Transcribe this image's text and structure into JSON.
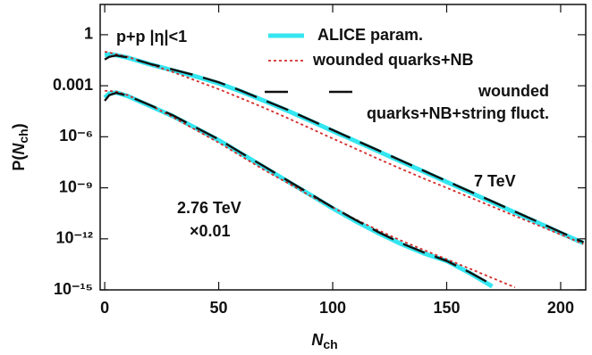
{
  "chart_data": {
    "type": "line",
    "xlabel": [
      "N",
      "ch"
    ],
    "ylabel": [
      "P(",
      "N",
      "ch",
      ")"
    ],
    "annotations": [
      "p+p  |η|<1",
      "7 TeV",
      "2.76 TeV",
      "×0.01"
    ],
    "xlim": [
      -2,
      211
    ],
    "ylim": [
      1e-15,
      60
    ],
    "log_y": true,
    "xticks": [
      0,
      50,
      100,
      150,
      200
    ],
    "yticks": [
      1,
      0.001,
      {
        "value": 1e-06,
        "label": "10⁻⁶"
      },
      {
        "value": 1e-09,
        "label": "10⁻⁹"
      },
      {
        "value": 1e-12,
        "label": "10⁻¹²"
      },
      {
        "value": 1e-15,
        "label": "10⁻¹⁵"
      }
    ],
    "x": [
      0,
      2,
      5,
      10,
      20,
      30,
      40,
      50,
      60,
      70,
      80,
      90,
      100,
      110,
      120,
      130,
      140,
      150,
      160,
      170,
      180,
      190,
      200,
      210
    ],
    "series": [
      {
        "name": "ALICE param.",
        "color": "#33e6f0",
        "style": "solid",
        "values": [
          [
            0.063,
            0.071,
            0.063,
            0.045,
            0.018,
            0.0079,
            0.0035,
            0.0014,
            0.00045,
            0.00013,
            3.5e-05,
            8.9e-06,
            2.2e-06,
            5.6e-07,
            1.4e-07,
            3.5e-08,
            8.9e-09,
            2.2e-09,
            5.6e-10,
            1.4e-10,
            3.5e-11,
            8.9e-12,
            2.2e-12,
            5.6e-13
          ],
          [
            0.0002,
            0.00035,
            0.0004,
            0.00025,
            6.3e-05,
            1.6e-05,
            3.2e-06,
            6.3e-07,
            1e-07,
            1.6e-08,
            2.5e-09,
            4e-10,
            6.3e-11,
            1.1e-11,
            2.2e-12,
            5e-13,
            1.4e-13,
            5e-14,
            1e-14,
            1.6e-15,
            null,
            null,
            null,
            null
          ]
        ]
      },
      {
        "name": "wounded quarks+NB",
        "color": "#d42a2a",
        "style": "dotted",
        "values": [
          [
            0.1,
            0.089,
            0.071,
            0.05,
            0.018,
            0.0063,
            0.002,
            0.00063,
            0.00018,
            5e-05,
            1.3e-05,
            3.2e-06,
            7.9e-07,
            2e-07,
            5e-08,
            1.3e-08,
            3.5e-09,
            1e-09,
            2.8e-10,
            7.9e-11,
            2.2e-11,
            6.3e-12,
            1.8e-12,
            5e-13
          ],
          [
            0.0005,
            0.0005,
            0.00045,
            0.00028,
            7.1e-05,
            1.4e-05,
            2.5e-06,
            4.5e-07,
            7.1e-08,
            1.1e-08,
            2e-09,
            3.5e-10,
            7.1e-11,
            1.4e-11,
            3.2e-12,
            7.9e-13,
            2.2e-13,
            6.3e-14,
            1.8e-14,
            5e-15,
            1.4e-15,
            null,
            null,
            null
          ]
        ]
      },
      {
        "name": "wounded quarks+NB+string fluct.",
        "color": "#111111",
        "style": "dashed",
        "values": [
          [
            0.035,
            0.05,
            0.06,
            0.047,
            0.019,
            0.0089,
            0.004,
            0.0016,
            0.0005,
            0.00014,
            4e-05,
            1e-05,
            2.5e-06,
            6.3e-07,
            1.6e-07,
            4e-08,
            1e-08,
            2.5e-09,
            6.3e-10,
            1.6e-10,
            4e-11,
            1e-11,
            2.5e-12,
            6.3e-13
          ],
          [
            0.00013,
            0.00028,
            0.00038,
            0.00026,
            7.1e-05,
            1.8e-05,
            3.5e-06,
            7.1e-07,
            1.1e-07,
            1.8e-08,
            2.8e-09,
            4.5e-10,
            7.1e-11,
            1.3e-11,
            2.5e-12,
            5.6e-13,
            1.6e-13,
            5e-14,
            1.1e-14,
            2e-15,
            null,
            null,
            null,
            null
          ]
        ]
      }
    ]
  }
}
